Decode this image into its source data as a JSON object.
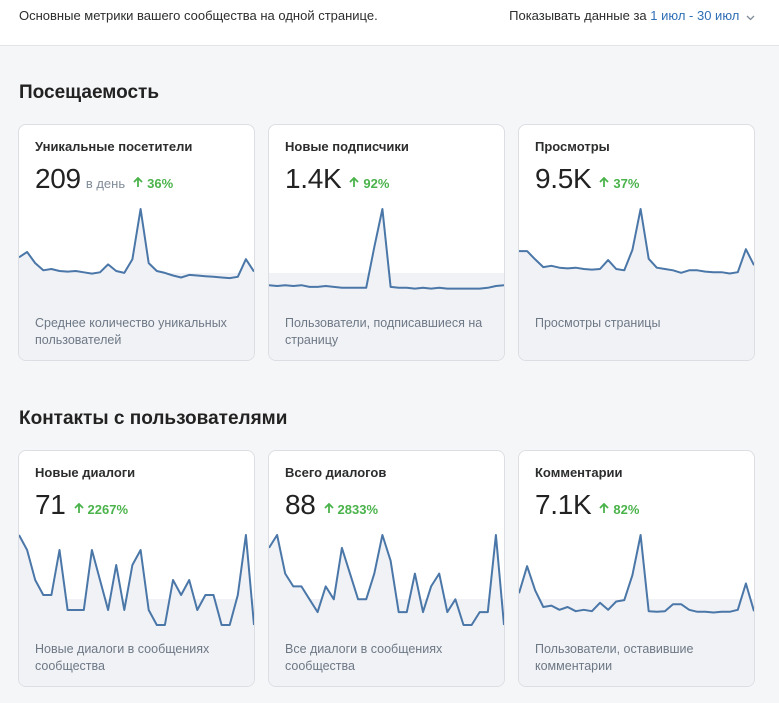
{
  "header": {
    "description": "Основные метрики вашего сообщества на одной странице.",
    "period_label": "Показывать данные за",
    "period_range": "1 июл - 30 июл"
  },
  "colors": {
    "line": "#4a77a8",
    "fill": "#f1f2f6",
    "positive": "#4bb34b",
    "link": "#2f6fb6"
  },
  "sections": [
    {
      "title": "Посещаемость",
      "cards": [
        {
          "title": "Уникальные посетители",
          "value": "209",
          "unit": "в день",
          "change": "36%",
          "caption": "Среднее количество уникальных пользователей",
          "series": [
            64,
            72,
            55,
            44,
            46,
            43,
            42,
            43,
            41,
            39,
            41,
            53,
            43,
            40,
            61,
            138,
            55,
            43,
            40,
            36,
            33,
            37,
            36,
            35,
            34,
            33,
            32,
            34,
            61,
            42
          ]
        },
        {
          "title": "Новые подписчики",
          "value": "1.4K",
          "unit": "",
          "change": "92%",
          "caption": "Пользователи, подписавшиеся на страницу",
          "series": [
            16,
            15,
            16,
            15,
            16,
            14,
            14,
            15,
            14,
            13,
            13,
            13,
            13,
            60,
            104,
            14,
            13,
            13,
            12,
            13,
            12,
            13,
            12,
            12,
            12,
            12,
            12,
            13,
            15,
            16
          ]
        },
        {
          "title": "Просмотры",
          "value": "9.5K",
          "unit": "",
          "change": "37%",
          "caption": "Просмотры страницы",
          "series": [
            75,
            75,
            62,
            50,
            52,
            49,
            48,
            49,
            47,
            46,
            47,
            61,
            47,
            45,
            77,
            141,
            63,
            49,
            47,
            45,
            41,
            45,
            45,
            43,
            42,
            42,
            40,
            42,
            78,
            53
          ]
        }
      ]
    },
    {
      "title": "Контакты с пользователями",
      "cards": [
        {
          "title": "Новые диалоги",
          "value": "71",
          "unit": "",
          "change": "2267%",
          "caption": "Новые диалоги в сообщениях сообщества",
          "series": [
            6,
            5,
            3,
            2,
            2,
            5,
            1,
            1,
            1,
            5,
            3,
            1,
            4,
            1,
            4,
            5,
            1,
            0,
            0,
            3,
            2,
            3,
            1,
            2,
            2,
            0,
            0,
            2,
            6,
            0
          ]
        },
        {
          "title": "Всего диалогов",
          "value": "88",
          "unit": "",
          "change": "2833%",
          "caption": "Все диалоги в сообщениях сообщества",
          "series": [
            6,
            7,
            4,
            3,
            3,
            2,
            1,
            3,
            2,
            6,
            4,
            2,
            2,
            4,
            7,
            5,
            1,
            1,
            4,
            1,
            3,
            4,
            1,
            2,
            0,
            0,
            1,
            1,
            7,
            0
          ]
        },
        {
          "title": "Комментарии",
          "value": "7.1K",
          "unit": "",
          "change": "82%",
          "caption": "Пользователи, оставившие комментарии",
          "series": [
            46,
            85,
            50,
            26,
            28,
            22,
            26,
            20,
            22,
            20,
            32,
            22,
            34,
            36,
            72,
            130,
            20,
            19,
            20,
            30,
            30,
            22,
            19,
            19,
            18,
            19,
            19,
            22,
            60,
            20
          ]
        }
      ]
    }
  ]
}
